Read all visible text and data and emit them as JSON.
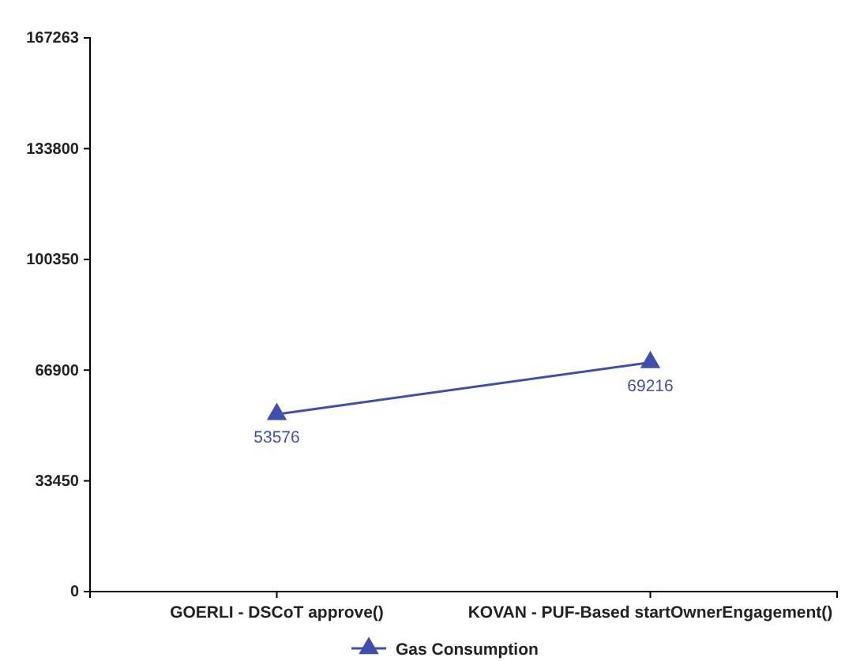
{
  "chart_data": {
    "type": "line",
    "categories": [
      "GOERLI - DSCoT approve()",
      "KOVAN - PUF-Based startOwnerEngagement()"
    ],
    "series": [
      {
        "name": "Gas Consumption",
        "color": "#3f4fb0",
        "values": [
          53576,
          69216
        ]
      }
    ],
    "ylim": [
      0,
      167263
    ],
    "yticks": [
      0,
      33450,
      66900,
      100350,
      133800,
      167263
    ],
    "marker": "triangle",
    "data_labels": true,
    "legend": "bottom",
    "grid": false
  }
}
